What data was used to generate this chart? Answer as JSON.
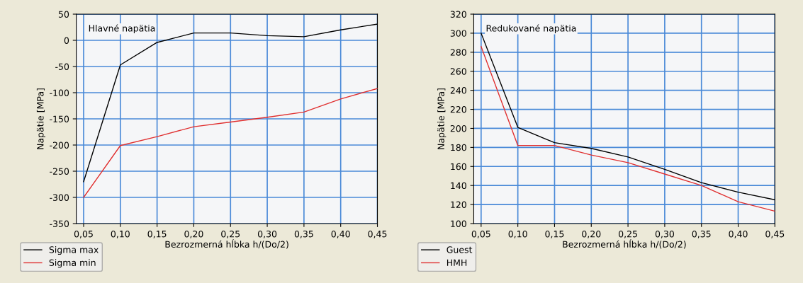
{
  "chart_data": [
    {
      "type": "line",
      "title": "Hlavné napätia",
      "xlabel": "Bezrozmerná hĺbka h/(Do/2)",
      "ylabel": "Napätie [MPa]",
      "x": [
        0.05,
        0.1,
        0.15,
        0.2,
        0.25,
        0.3,
        0.35,
        0.4,
        0.45
      ],
      "series": [
        {
          "name": "Sigma max",
          "color": "#000000",
          "values": [
            -270,
            -47,
            -4,
            14,
            14,
            9,
            7,
            20,
            31
          ]
        },
        {
          "name": "Sigma min",
          "color": "#e03030",
          "values": [
            -300,
            -201,
            -184,
            -165,
            -156,
            -147,
            -137,
            -112,
            -92
          ]
        }
      ],
      "xlim": [
        0.04,
        0.45
      ],
      "xticks": [
        {
          "value": 0.05,
          "label": "0,05"
        },
        {
          "value": 0.1,
          "label": "0,10"
        },
        {
          "value": 0.15,
          "label": "0,15"
        },
        {
          "value": 0.2,
          "label": "0,20"
        },
        {
          "value": 0.25,
          "label": "0,25"
        },
        {
          "value": 0.3,
          "label": "0,30"
        },
        {
          "value": 0.35,
          "label": "0,35"
        },
        {
          "value": 0.4,
          "label": "0,40"
        },
        {
          "value": 0.45,
          "label": "0,45"
        }
      ],
      "ylim": [
        -350,
        50
      ],
      "yticks": [
        -350,
        -300,
        -250,
        -200,
        -150,
        -100,
        -50,
        0,
        50
      ],
      "grid": true,
      "legend": "bottom left",
      "line_style": "solid"
    },
    {
      "type": "line",
      "title": "Redukované napätia",
      "xlabel": "Bezrozmerná hĺbka h/(Do/2)",
      "ylabel": "Napätie [MPa]",
      "x": [
        0.05,
        0.1,
        0.15,
        0.2,
        0.25,
        0.3,
        0.35,
        0.4,
        0.45
      ],
      "series": [
        {
          "name": "Guest",
          "color": "#000000",
          "values": [
            300,
            201,
            185,
            179,
            170,
            157,
            143,
            133,
            125
          ]
        },
        {
          "name": "HMH",
          "color": "#e03030",
          "values": [
            286,
            182,
            182,
            172,
            164,
            152,
            140,
            123,
            113
          ]
        }
      ],
      "xlim": [
        0.04,
        0.45
      ],
      "xticks": [
        {
          "value": 0.05,
          "label": "0,05"
        },
        {
          "value": 0.1,
          "label": "0,10"
        },
        {
          "value": 0.15,
          "label": "0,15"
        },
        {
          "value": 0.2,
          "label": "0,20"
        },
        {
          "value": 0.25,
          "label": "0,25"
        },
        {
          "value": 0.3,
          "label": "0,30"
        },
        {
          "value": 0.35,
          "label": "0,35"
        },
        {
          "value": 0.4,
          "label": "0,40"
        },
        {
          "value": 0.45,
          "label": "0,45"
        }
      ],
      "ylim": [
        100,
        320
      ],
      "yticks": [
        100,
        120,
        140,
        160,
        180,
        200,
        220,
        240,
        260,
        280,
        300,
        320
      ],
      "grid": true,
      "legend": "bottom left",
      "line_style": "solid"
    }
  ]
}
